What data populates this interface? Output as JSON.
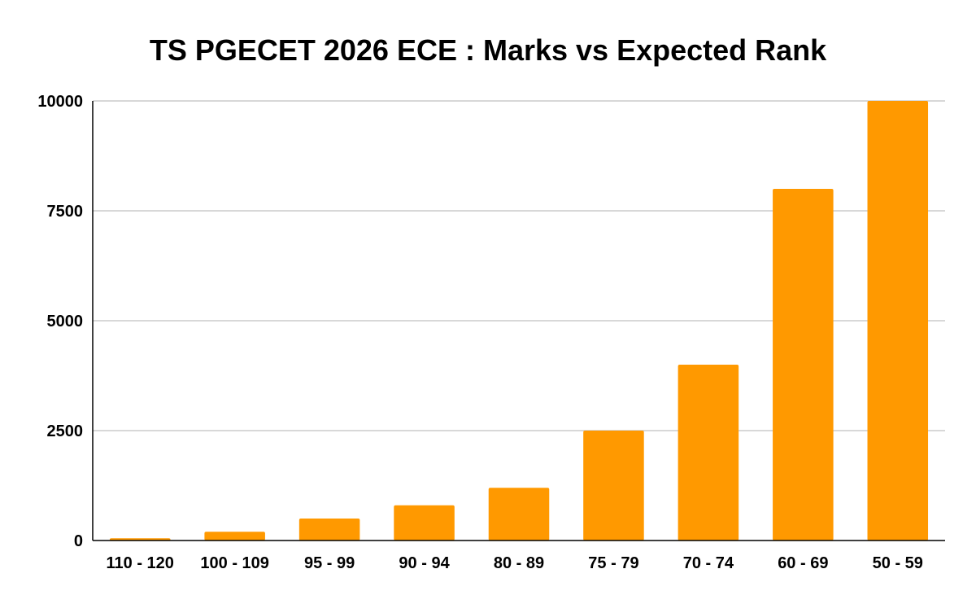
{
  "chart_data": {
    "type": "bar",
    "title": "TS PGECET 2026 ECE : Marks vs Expected Rank",
    "xlabel": "",
    "ylabel": "",
    "categories": [
      "110 - 120",
      "100 - 109",
      "95 - 99",
      "90 - 94",
      "80 - 89",
      "75 - 79",
      "70 - 74",
      "60 - 69",
      "50 - 59"
    ],
    "series": [
      {
        "values": [
          50,
          200,
          500,
          800,
          1200,
          2500,
          4000,
          8000,
          10000
        ]
      }
    ],
    "ylim": [
      0,
      10000
    ],
    "yticks": [
      0,
      2500,
      5000,
      7500,
      10000
    ],
    "ytick_labels": [
      "0",
      "2500",
      "5000",
      "7500",
      "10000"
    ],
    "grid": true,
    "legend": "none",
    "colors": {
      "bar": "#ff9900",
      "grid": "#cccccc",
      "axis": "#000000"
    }
  }
}
